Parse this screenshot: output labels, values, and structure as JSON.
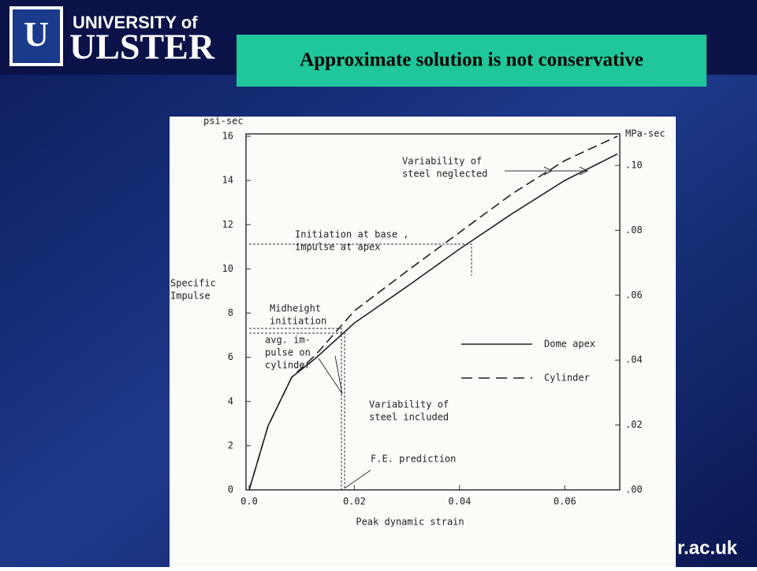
{
  "slide": {
    "logo_top": "UNIVERSITY of",
    "logo_main": "ULSTER",
    "banner": "Approximate solution is not conservative",
    "footer": "r.ac.uk"
  },
  "chart_data": {
    "type": "line",
    "y_label": "psi-sec",
    "y2_label": "MPa-sec",
    "y_title": [
      "Specific",
      "Impulse"
    ],
    "x_label": "Peak dynamic strain",
    "x": [
      0,
      0.0036,
      0.0081,
      0.0126,
      0.02,
      0.03,
      0.04,
      0.05,
      0.06,
      0.07
    ],
    "series": [
      {
        "name": "Dome apex",
        "color": "#222222",
        "dash": false,
        "values": [
          0,
          2.9,
          5.1,
          5.95,
          7.55,
          9.2,
          10.9,
          12.5,
          14.0,
          15.2
        ]
      },
      {
        "name": "Cylinder",
        "color": "#222222",
        "dash": true,
        "values": [
          0,
          2.9,
          5.1,
          6.1,
          8.1,
          9.9,
          11.65,
          13.4,
          14.9,
          16.0
        ]
      }
    ],
    "xlim": [
      0,
      0.07
    ],
    "ylim": [
      0,
      16
    ],
    "y2lim": [
      0,
      0.109
    ],
    "xticks": [
      {
        "value": 0,
        "label": "0.0"
      },
      0.02,
      0.04,
      0.06
    ],
    "yticks": [
      0,
      2,
      4,
      6,
      8,
      10,
      12,
      14,
      16
    ],
    "y2ticks": [
      {
        "value": 0,
        "label": ".00"
      },
      {
        "value": 0.02,
        "label": ".02"
      },
      {
        "value": 0.04,
        "label": ".04"
      },
      {
        "value": 0.06,
        "label": ".06"
      },
      {
        "value": 0.08,
        "label": ".08"
      },
      {
        "value": 0.1,
        "label": ".10"
      }
    ],
    "annotations": [
      {
        "lines": [
          "Variability of",
          "steel neglected"
        ]
      },
      {
        "lines": [
          "Initiation at base ,",
          "impulse at apex"
        ]
      },
      {
        "lines": [
          "Midheight",
          "initiation"
        ]
      },
      {
        "lines": [
          "avg. im-",
          "pulse on",
          "cylinder"
        ]
      },
      {
        "lines": [
          "Variability of",
          "steel included"
        ]
      },
      {
        "lines": [
          "F.E. prediction"
        ]
      }
    ]
  }
}
